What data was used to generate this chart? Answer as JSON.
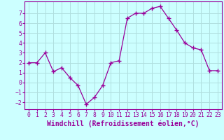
{
  "x": [
    0,
    1,
    2,
    3,
    4,
    5,
    6,
    7,
    8,
    9,
    10,
    11,
    12,
    13,
    14,
    15,
    16,
    17,
    18,
    19,
    20,
    21,
    22,
    23
  ],
  "y": [
    2.0,
    2.0,
    3.0,
    1.1,
    1.5,
    0.5,
    -0.3,
    -2.2,
    -1.5,
    -0.3,
    2.0,
    2.2,
    6.5,
    7.0,
    7.0,
    7.5,
    7.7,
    6.5,
    5.3,
    4.0,
    3.5,
    3.3,
    1.2,
    1.2
  ],
  "line_color": "#990099",
  "marker_color": "#990099",
  "bg_color": "#ccffff",
  "grid_color": "#b0dede",
  "xlabel": "Windchill (Refroidissement éolien,°C)",
  "xlabel_color": "#990099",
  "yticks": [
    -2,
    -1,
    0,
    1,
    2,
    3,
    4,
    5,
    6,
    7
  ],
  "xticks": [
    0,
    1,
    2,
    3,
    4,
    5,
    6,
    7,
    8,
    9,
    10,
    11,
    12,
    13,
    14,
    15,
    16,
    17,
    18,
    19,
    20,
    21,
    22,
    23
  ],
  "ylim": [
    -2.7,
    8.2
  ],
  "xlim": [
    -0.5,
    23.5
  ],
  "tick_label_color": "#990099",
  "tick_label_fontsize": 5.8,
  "xlabel_fontsize": 7.0,
  "spine_color": "#990099"
}
